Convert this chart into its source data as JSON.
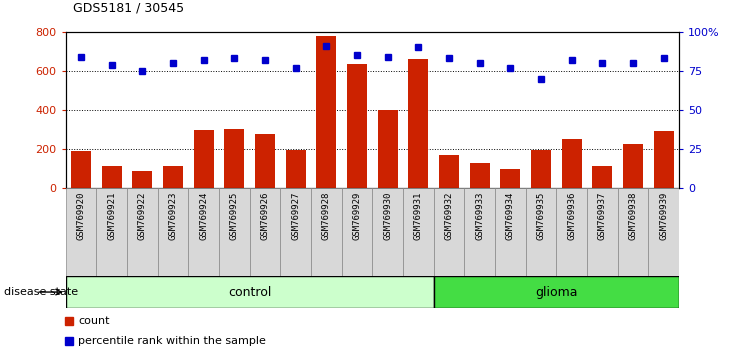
{
  "title": "GDS5181 / 30545",
  "samples": [
    "GSM769920",
    "GSM769921",
    "GSM769922",
    "GSM769923",
    "GSM769924",
    "GSM769925",
    "GSM769926",
    "GSM769927",
    "GSM769928",
    "GSM769929",
    "GSM769930",
    "GSM769931",
    "GSM769932",
    "GSM769933",
    "GSM769934",
    "GSM769935",
    "GSM769936",
    "GSM769937",
    "GSM769938",
    "GSM769939"
  ],
  "counts": [
    190,
    110,
    85,
    110,
    295,
    300,
    275,
    195,
    780,
    635,
    400,
    660,
    165,
    125,
    95,
    195,
    250,
    110,
    225,
    290
  ],
  "percentiles": [
    84,
    79,
    75,
    80,
    82,
    83,
    82,
    77,
    91,
    85,
    84,
    90,
    83,
    80,
    77,
    70,
    82,
    80,
    80,
    83
  ],
  "control_count": 12,
  "glioma_count": 8,
  "ylim_left": [
    0,
    800
  ],
  "ylim_right": [
    0,
    100
  ],
  "yticks_left": [
    0,
    200,
    400,
    600,
    800
  ],
  "yticks_right": [
    0,
    25,
    50,
    75,
    100
  ],
  "ytick_labels_right": [
    "0",
    "25",
    "50",
    "75",
    "100%"
  ],
  "bar_color": "#cc2200",
  "dot_color": "#0000cc",
  "control_color": "#ccffcc",
  "glioma_color": "#44dd44",
  "label_color_left": "#cc2200",
  "label_color_right": "#0000cc",
  "grid_color": "black",
  "sample_bg_color": "#d8d8d8",
  "legend_count_label": "count",
  "legend_pct_label": "percentile rank within the sample",
  "xlabel_disease": "disease state",
  "control_label": "control",
  "glioma_label": "glioma"
}
